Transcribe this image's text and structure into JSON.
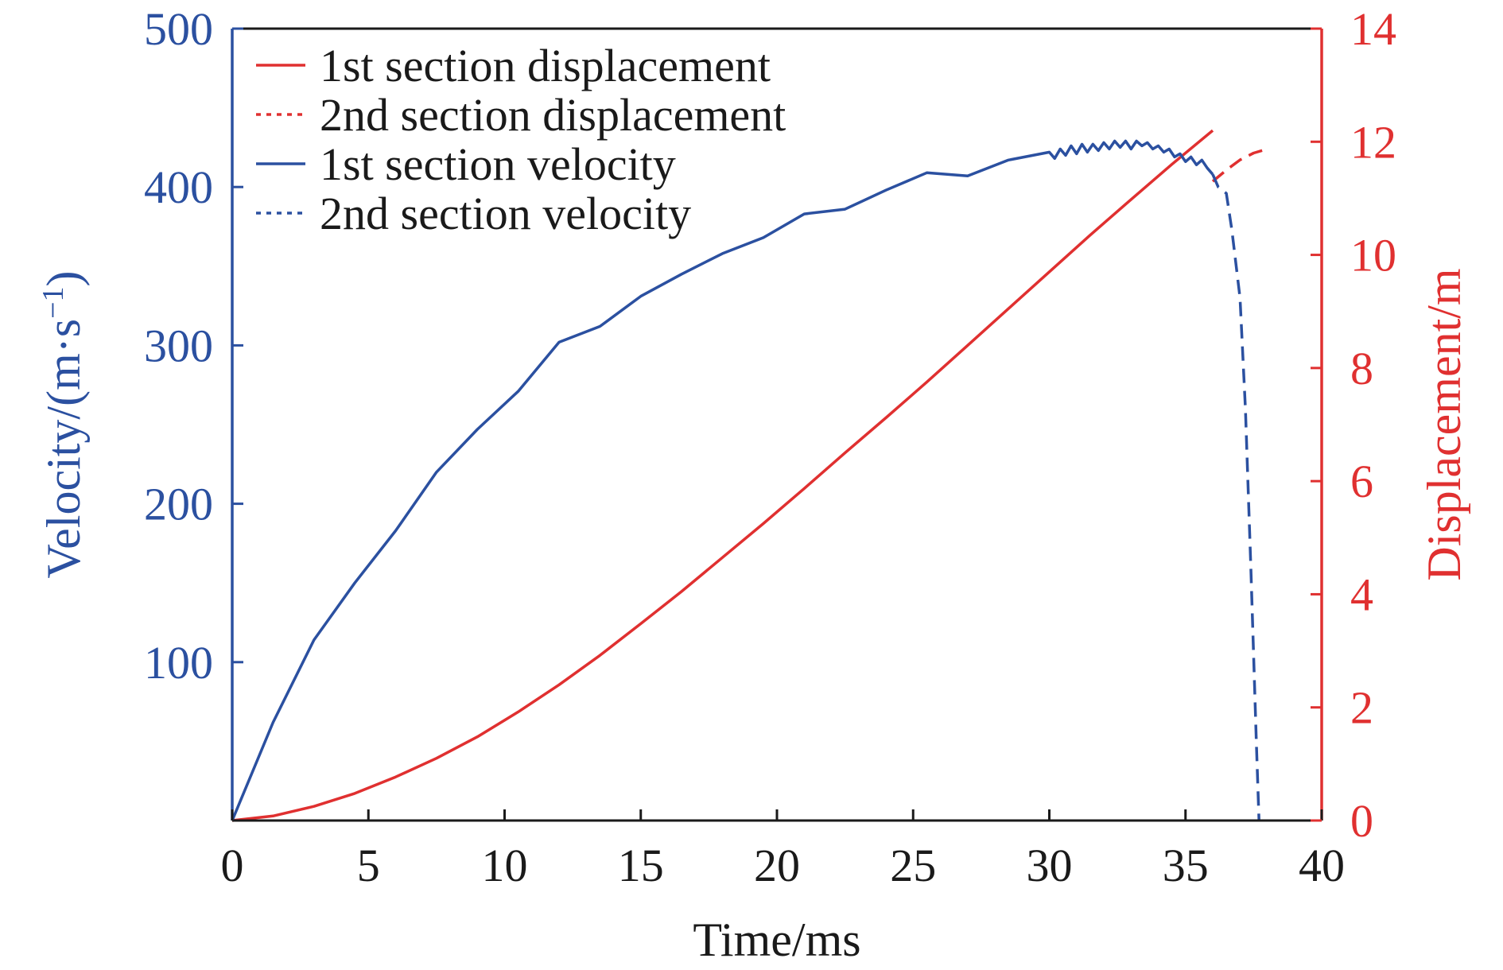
{
  "chart_data": {
    "type": "line",
    "xlabel": "Time/ms",
    "ylabel_left": "Velocity/(m·s",
    "ylabel_left_sup": "−1",
    "ylabel_left_close": ")",
    "ylabel_right": "Displacement/m",
    "xlim": [
      0,
      40
    ],
    "ylim_left": [
      0,
      500
    ],
    "ylim_right": [
      0,
      14
    ],
    "x_ticks": [
      0,
      5,
      10,
      15,
      20,
      25,
      30,
      35,
      40
    ],
    "y_left_ticks": [
      100,
      200,
      300,
      400,
      500
    ],
    "y_right_ticks": [
      0,
      2,
      4,
      6,
      8,
      10,
      12,
      14
    ],
    "grid": false,
    "legend_position": "top-left",
    "colors": {
      "velocity": "#2b50a0",
      "displacement": "#e03030",
      "frame": "#1a1a1a"
    },
    "series": [
      {
        "name": "1st section displacement",
        "axis": "right",
        "style": "solid",
        "color": "#e03030",
        "x": [
          0,
          1.5,
          3,
          4.5,
          6,
          7.5,
          9,
          10.5,
          12,
          13.5,
          15,
          16.5,
          18,
          19.5,
          21,
          22.5,
          24,
          25.5,
          27,
          28.5,
          30,
          31.5,
          33,
          34.5,
          36
        ],
        "y": [
          0,
          0.08,
          0.25,
          0.48,
          0.77,
          1.1,
          1.48,
          1.92,
          2.4,
          2.92,
          3.48,
          4.05,
          4.65,
          5.25,
          5.87,
          6.5,
          7.12,
          7.75,
          8.4,
          9.05,
          9.7,
          10.35,
          10.98,
          11.6,
          12.2
        ]
      },
      {
        "name": "2nd section displacement",
        "axis": "right",
        "style": "dashed",
        "color": "#e03030",
        "x": [
          36,
          36.5,
          37,
          37.5,
          38
        ],
        "y": [
          11.3,
          11.5,
          11.68,
          11.8,
          11.87
        ]
      },
      {
        "name": "1st section velocity",
        "axis": "left",
        "style": "solid",
        "color": "#2b50a0",
        "x": [
          0,
          1.5,
          3,
          4.5,
          6,
          7.5,
          9,
          10.5,
          12,
          13.5,
          15,
          16.5,
          18,
          19.5,
          21,
          22.5,
          24,
          25.5,
          27,
          28.5,
          30,
          30.2,
          30.4,
          30.6,
          30.8,
          31,
          31.2,
          31.4,
          31.6,
          31.8,
          32,
          32.2,
          32.4,
          32.6,
          32.8,
          33,
          33.2,
          33.4,
          33.6,
          33.8,
          34,
          34.2,
          34.4,
          34.6,
          34.8,
          35,
          35.2,
          35.4,
          35.6,
          35.8,
          36
        ],
        "y": [
          0,
          62,
          114,
          150,
          183,
          220,
          247,
          271,
          302,
          312,
          331,
          345,
          358,
          368,
          383,
          386,
          398,
          409,
          407,
          417,
          422,
          418,
          424,
          420,
          426,
          421,
          427,
          422,
          427,
          423,
          428,
          424,
          429,
          425,
          429,
          424,
          429,
          426,
          428,
          424,
          426,
          422,
          424,
          419,
          421,
          416,
          419,
          414,
          417,
          412,
          408
        ]
      },
      {
        "name": "2nd section velocity",
        "axis": "left",
        "style": "dashed",
        "color": "#2b50a0",
        "x": [
          36,
          36.2,
          36.5,
          36.7,
          37,
          37.2,
          37.4,
          37.6,
          37.7
        ],
        "y": [
          408,
          400,
          396,
          373,
          330,
          260,
          160,
          50,
          0
        ]
      }
    ]
  }
}
